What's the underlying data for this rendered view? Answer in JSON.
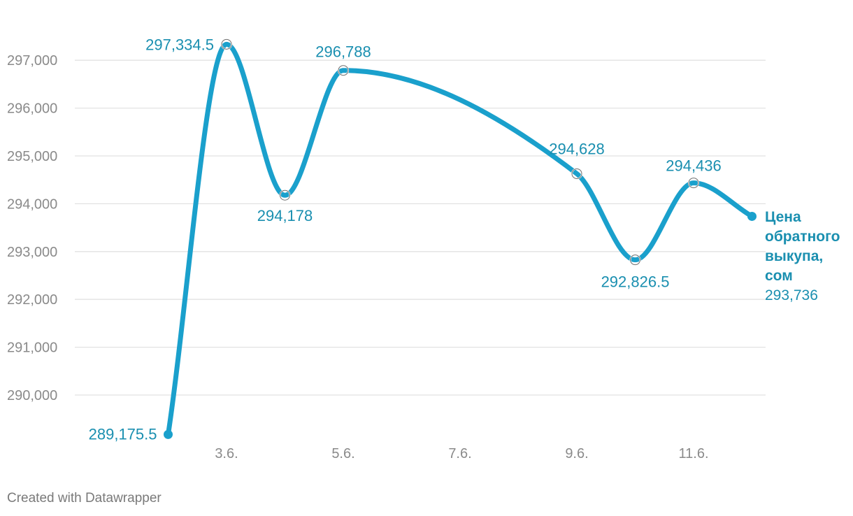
{
  "chart_data": {
    "type": "line",
    "x": [
      "2.6.",
      "3.6.",
      "4.6.",
      "5.6.",
      "9.6.",
      "10.6.",
      "11.6.",
      "12.6."
    ],
    "x_ticks": [
      "3.6.",
      "5.6.",
      "7.6.",
      "9.6.",
      "11.6."
    ],
    "y_ticks": [
      "290,000",
      "291,000",
      "292,000",
      "293,000",
      "294,000",
      "295,000",
      "296,000",
      "297,000"
    ],
    "ylim": [
      289000,
      297500
    ],
    "grid": true,
    "series": [
      {
        "name": "Цена обратного выкупа, сом",
        "name_lines": [
          "Цена",
          "обратного",
          "выкупа,",
          "сом"
        ],
        "last_value_label": "293,736",
        "values": [
          289175.5,
          297334.5,
          294178,
          296788,
          294628,
          292826.5,
          294436,
          293736
        ],
        "labels": [
          "289,175.5",
          "297,334.5",
          "294,178",
          "296,788",
          "294,628",
          "292,826.5",
          "294,436",
          "293,736"
        ],
        "color": "#1aa0cc"
      }
    ]
  },
  "footer": {
    "credit": "Created with Datawrapper"
  }
}
